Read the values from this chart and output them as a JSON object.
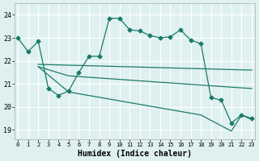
{
  "xlabel": "Humidex (Indice chaleur)",
  "bg_color": "#dff0f0",
  "line_color": "#1a7a6a",
  "grid_color": "#ffffff",
  "x_ticks": [
    0,
    1,
    2,
    3,
    4,
    5,
    6,
    7,
    8,
    9,
    10,
    11,
    12,
    13,
    14,
    15,
    16,
    17,
    18,
    19,
    20,
    21,
    22,
    23
  ],
  "y_ticks": [
    19,
    20,
    21,
    22,
    23,
    24
  ],
  "xlim": [
    -0.3,
    23.3
  ],
  "ylim": [
    18.6,
    24.5
  ],
  "series1_x": [
    0,
    1,
    2,
    3,
    4,
    5,
    6,
    7,
    8,
    9,
    10,
    11,
    12,
    13,
    14,
    15,
    16,
    17,
    18,
    19,
    20,
    21,
    22,
    23
  ],
  "series1_y": [
    23.0,
    22.4,
    22.85,
    20.8,
    20.5,
    20.7,
    21.5,
    22.2,
    22.2,
    23.85,
    23.85,
    23.35,
    23.3,
    23.1,
    23.0,
    23.05,
    23.35,
    22.9,
    22.75,
    20.4,
    20.3,
    19.3,
    19.65,
    19.5
  ],
  "series2_x": [
    2,
    23
  ],
  "series2_y": [
    21.85,
    21.6
  ],
  "series3_x": [
    2,
    5,
    18,
    23
  ],
  "series3_y": [
    21.75,
    21.35,
    20.95,
    20.8
  ],
  "series4_x": [
    2,
    5,
    18,
    21,
    22,
    23
  ],
  "series4_y": [
    21.75,
    20.65,
    19.65,
    18.95,
    19.65,
    19.45
  ]
}
